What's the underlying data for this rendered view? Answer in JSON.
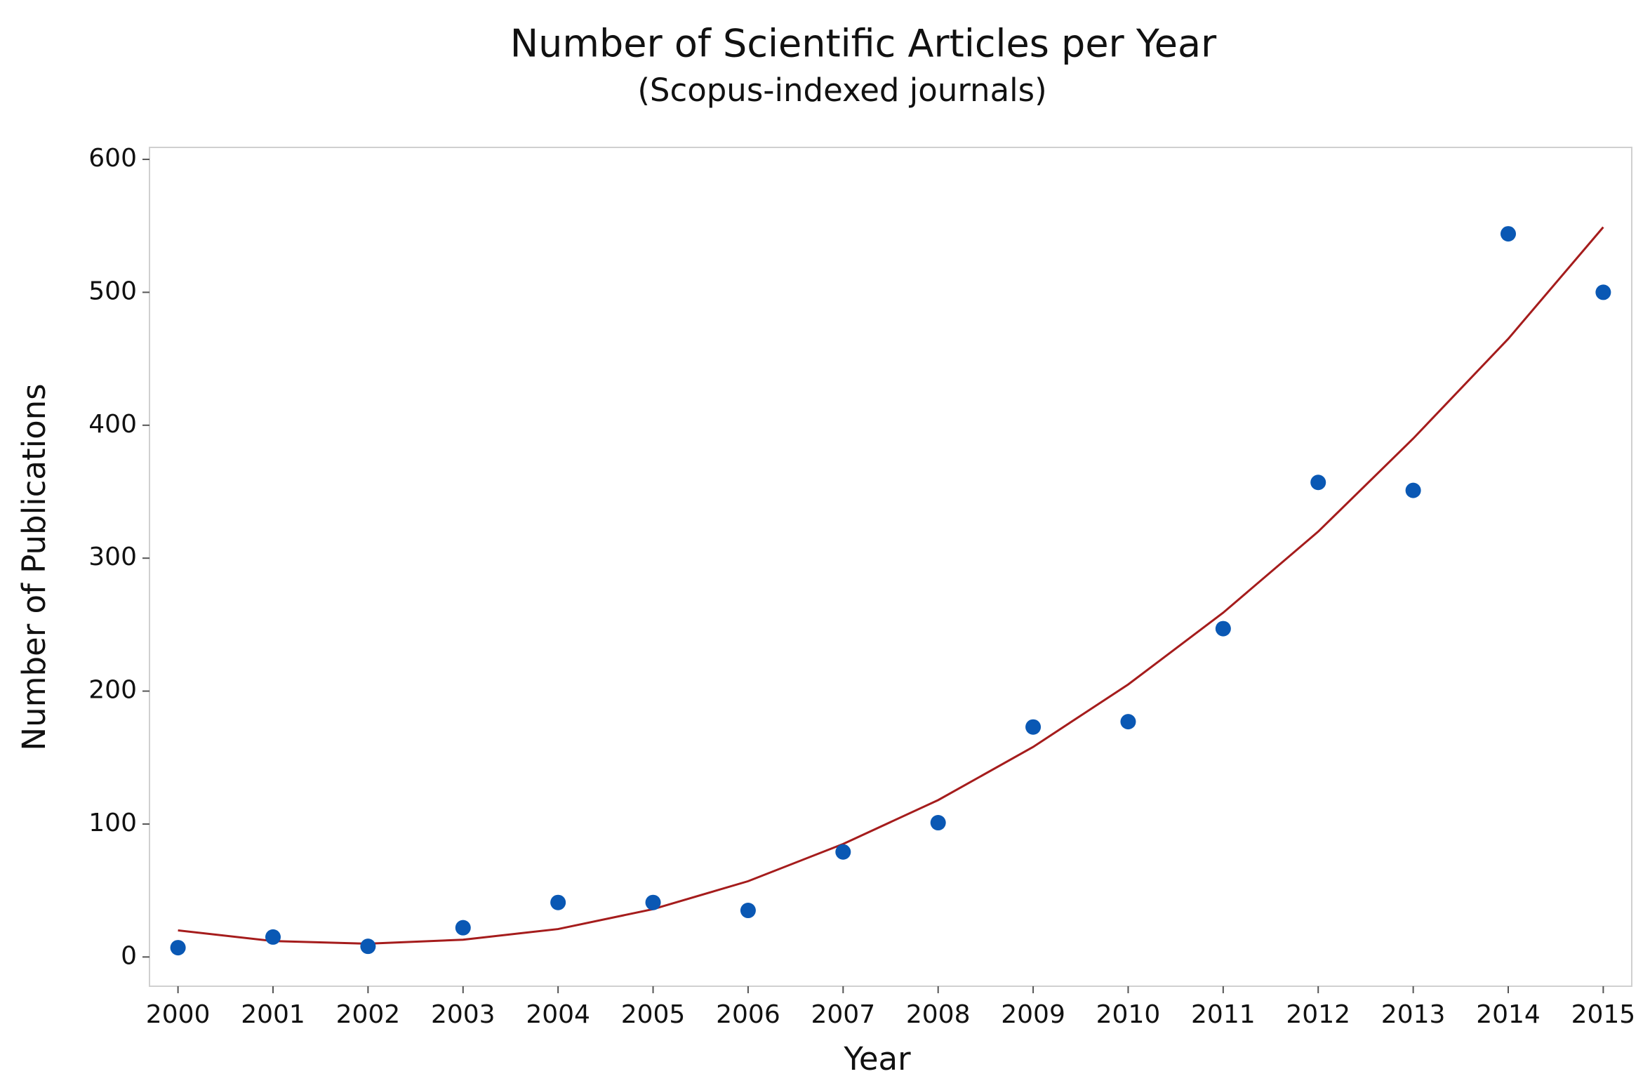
{
  "chart_data": {
    "type": "scatter",
    "title": "Number of Scientific Articles per Year",
    "subtitle": "(Scopus-indexed journals)",
    "x_label": "Year",
    "y_label": "Number of Publications",
    "x": [
      2000,
      2001,
      2002,
      2003,
      2004,
      2005,
      2006,
      2007,
      2008,
      2009,
      2010,
      2011,
      2012,
      2013,
      2014,
      2015
    ],
    "values": [
      7,
      15,
      8,
      22,
      41,
      41,
      35,
      79,
      101,
      173,
      177,
      247,
      357,
      351,
      544,
      500
    ],
    "color": "#0a58b4",
    "fit_values": [
      20,
      12,
      10,
      13,
      21,
      36,
      57,
      85,
      118,
      158,
      205,
      259,
      320,
      390,
      465,
      549
    ],
    "fit_color": "#a51c1c",
    "xlim": [
      1999.7,
      2015.3
    ],
    "ylim": [
      -22,
      609
    ],
    "xticks": [
      2000,
      2001,
      2002,
      2003,
      2004,
      2005,
      2006,
      2007,
      2008,
      2009,
      2010,
      2011,
      2012,
      2013,
      2014,
      2015
    ],
    "yticks": [
      0,
      100,
      200,
      300,
      400,
      500,
      600
    ]
  }
}
